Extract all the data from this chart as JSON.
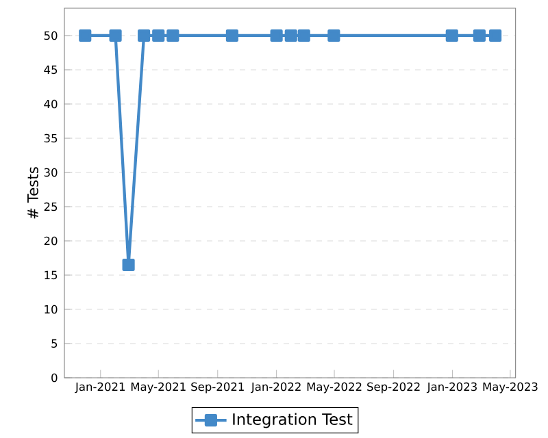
{
  "chart_data": {
    "type": "line",
    "ylabel": "# Tests",
    "x": [
      "2020-11-30",
      "2021-02-01",
      "2021-02-28",
      "2021-04-01",
      "2021-05-01",
      "2021-05-31",
      "2021-10-01",
      "2022-01-01",
      "2022-01-31",
      "2022-02-27",
      "2022-04-30",
      "2022-12-31",
      "2023-02-26",
      "2023-03-31"
    ],
    "series": [
      {
        "name": "Integration Test",
        "color": "#4389c8",
        "values": [
          50,
          50,
          16.5,
          50,
          50,
          50,
          50,
          50,
          50,
          50,
          50,
          50,
          50,
          50
        ]
      }
    ],
    "xlim": [
      "2020-10-18",
      "2023-05-12"
    ],
    "xticks": [
      {
        "value": "2021-01-01",
        "label": "Jan-2021"
      },
      {
        "value": "2021-05-01",
        "label": "May-2021"
      },
      {
        "value": "2021-09-01",
        "label": "Sep-2021"
      },
      {
        "value": "2022-01-01",
        "label": "Jan-2022"
      },
      {
        "value": "2022-05-01",
        "label": "May-2022"
      },
      {
        "value": "2022-09-01",
        "label": "Sep-2022"
      },
      {
        "value": "2023-01-01",
        "label": "Jan-2023"
      },
      {
        "value": "2023-05-01",
        "label": "May-2023"
      }
    ],
    "ylim": [
      0,
      54
    ],
    "yticks": [
      0,
      5,
      10,
      15,
      20,
      25,
      30,
      35,
      40,
      45,
      50
    ],
    "grid": "y",
    "legend": "bottom",
    "marker": "square",
    "line_style": "solid"
  }
}
